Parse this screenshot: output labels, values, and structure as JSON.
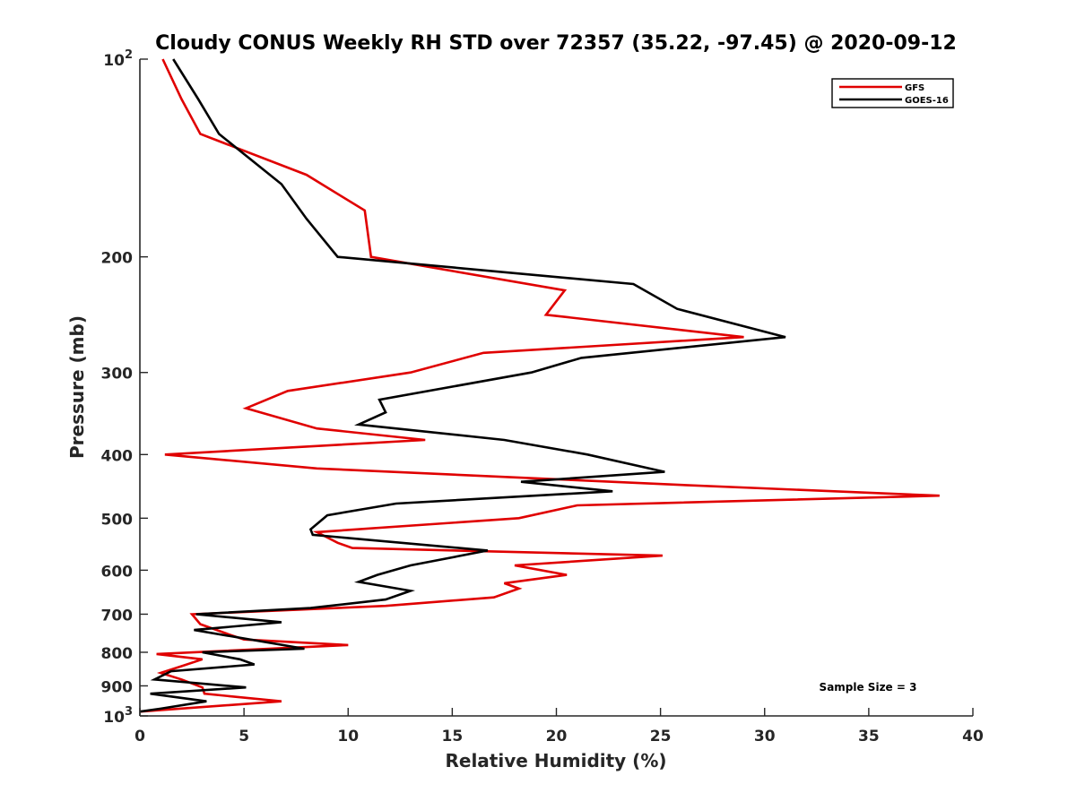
{
  "chart_data": {
    "type": "line",
    "title": "Cloudy CONUS Weekly RH STD over 72357 (35.22, -97.45) @ 2020-09-12",
    "xlabel": "Relative Humidity (%)",
    "ylabel": "Pressure (mb)",
    "xlim": [
      0,
      40
    ],
    "ylim": [
      100,
      1000
    ],
    "y_scale": "log",
    "y_reversed": true,
    "x_ticks": [
      0,
      5,
      10,
      15,
      20,
      25,
      30,
      35,
      40
    ],
    "x_tick_labels": [
      "0",
      "5",
      "10",
      "15",
      "20",
      "25",
      "30",
      "35",
      "40"
    ],
    "y_ticks": [
      100,
      200,
      300,
      400,
      500,
      600,
      700,
      800,
      900,
      1000
    ],
    "y_tick_labels": [
      "10²",
      "200",
      "300",
      "400",
      "500",
      "600",
      "700",
      "800",
      "900",
      "10³"
    ],
    "grid": false,
    "legend_position": "top-right",
    "annotation": "Sample Size = 3",
    "series": [
      {
        "name": "GFS",
        "color": "#e00000",
        "points": [
          [
            1.1,
            100
          ],
          [
            2.0,
            115
          ],
          [
            2.9,
            130
          ],
          [
            8.0,
            150
          ],
          [
            10.8,
            170
          ],
          [
            11.1,
            200
          ],
          [
            20.4,
            225
          ],
          [
            19.5,
            245
          ],
          [
            29.0,
            265
          ],
          [
            16.5,
            280
          ],
          [
            13.0,
            300
          ],
          [
            7.1,
            320
          ],
          [
            5.1,
            340
          ],
          [
            8.5,
            365
          ],
          [
            13.7,
            380
          ],
          [
            1.2,
            400
          ],
          [
            8.5,
            420
          ],
          [
            26.0,
            445
          ],
          [
            38.4,
            462
          ],
          [
            21.0,
            478
          ],
          [
            18.2,
            500
          ],
          [
            8.5,
            525
          ],
          [
            9.5,
            545
          ],
          [
            10.2,
            555
          ],
          [
            25.1,
            570
          ],
          [
            18.0,
            590
          ],
          [
            20.5,
            610
          ],
          [
            17.5,
            628
          ],
          [
            18.2,
            640
          ],
          [
            17.0,
            660
          ],
          [
            11.8,
            680
          ],
          [
            2.5,
            700
          ],
          [
            2.9,
            725
          ],
          [
            4.2,
            750
          ],
          [
            5.0,
            765
          ],
          [
            10.0,
            780
          ],
          [
            0.8,
            805
          ],
          [
            3.0,
            820
          ],
          [
            2.0,
            840
          ],
          [
            1.0,
            860
          ],
          [
            2.0,
            880
          ],
          [
            3.0,
            905
          ],
          [
            3.1,
            925
          ],
          [
            6.8,
            950
          ],
          [
            0.0,
            985
          ]
        ]
      },
      {
        "name": "GOES-16",
        "color": "#000000",
        "points": [
          [
            1.6,
            100
          ],
          [
            2.8,
            115
          ],
          [
            3.8,
            130
          ],
          [
            6.8,
            155
          ],
          [
            8.0,
            175
          ],
          [
            9.5,
            200
          ],
          [
            23.7,
            220
          ],
          [
            25.8,
            240
          ],
          [
            31.0,
            265
          ],
          [
            21.2,
            285
          ],
          [
            18.8,
            300
          ],
          [
            11.5,
            330
          ],
          [
            11.8,
            345
          ],
          [
            10.5,
            360
          ],
          [
            17.5,
            380
          ],
          [
            21.5,
            400
          ],
          [
            25.2,
            425
          ],
          [
            18.3,
            440
          ],
          [
            22.7,
            455
          ],
          [
            12.3,
            475
          ],
          [
            9.0,
            495
          ],
          [
            8.2,
            520
          ],
          [
            8.3,
            530
          ],
          [
            16.7,
            560
          ],
          [
            13.0,
            590
          ],
          [
            11.4,
            610
          ],
          [
            10.5,
            625
          ],
          [
            13.0,
            645
          ],
          [
            11.8,
            665
          ],
          [
            8.2,
            685
          ],
          [
            2.7,
            700
          ],
          [
            6.8,
            720
          ],
          [
            2.6,
            740
          ],
          [
            7.9,
            790
          ],
          [
            3.0,
            800
          ],
          [
            4.8,
            820
          ],
          [
            5.5,
            835
          ],
          [
            1.5,
            855
          ],
          [
            0.7,
            880
          ],
          [
            5.1,
            905
          ],
          [
            0.5,
            925
          ],
          [
            3.2,
            950
          ],
          [
            1.0,
            975
          ],
          [
            0.0,
            985
          ]
        ]
      }
    ]
  }
}
